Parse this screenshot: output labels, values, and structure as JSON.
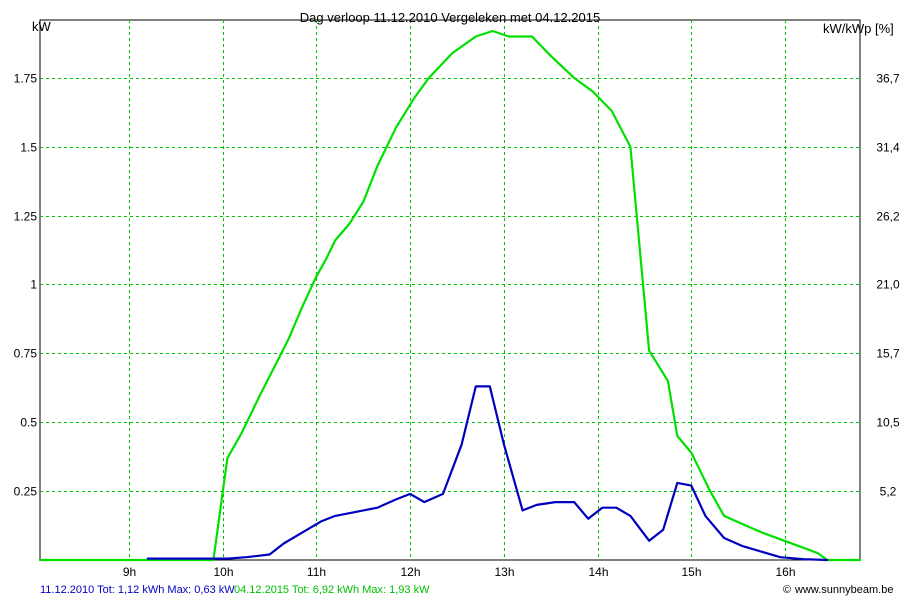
{
  "chart_data": {
    "type": "line",
    "title": "Dag  verloop 11.12.2010   Vergeleken met 04.12.2015",
    "ylabel_left": "kW",
    "ylabel_right": "kW/kWp [%]",
    "grid": true,
    "x_unit": "hour",
    "xlim": [
      8.05,
      16.8
    ],
    "ylim": [
      0,
      1.96
    ],
    "x_ticks": [
      {
        "value": 9,
        "label": "9h"
      },
      {
        "value": 10,
        "label": "10h"
      },
      {
        "value": 11,
        "label": "11h"
      },
      {
        "value": 12,
        "label": "12h"
      },
      {
        "value": 13,
        "label": "13h"
      },
      {
        "value": 14,
        "label": "14h"
      },
      {
        "value": 15,
        "label": "15h"
      },
      {
        "value": 16,
        "label": "16h"
      }
    ],
    "y_ticks_left": [
      {
        "value": 0.25,
        "label": "0.25"
      },
      {
        "value": 0.5,
        "label": "0.5"
      },
      {
        "value": 0.75,
        "label": "0.75"
      },
      {
        "value": 1,
        "label": "1"
      },
      {
        "value": 1.25,
        "label": "1.25"
      },
      {
        "value": 1.5,
        "label": "1.5"
      },
      {
        "value": 1.75,
        "label": "1.75"
      }
    ],
    "y_ticks_right": [
      {
        "value": 0.25,
        "label": "5,2"
      },
      {
        "value": 0.5,
        "label": "10,5"
      },
      {
        "value": 0.75,
        "label": "15,7"
      },
      {
        "value": 1,
        "label": "21,0"
      },
      {
        "value": 1.25,
        "label": "26,2"
      },
      {
        "value": 1.5,
        "label": "31,4"
      },
      {
        "value": 1.75,
        "label": "36,7"
      }
    ],
    "series": [
      {
        "name": "04.12.2015",
        "color": "#00e000",
        "x": [
          8.05,
          9.9,
          10.05,
          10.2,
          10.4,
          10.55,
          10.7,
          10.85,
          11.0,
          11.1,
          11.2,
          11.35,
          11.5,
          11.65,
          11.85,
          12.05,
          12.2,
          12.45,
          12.7,
          12.88,
          13.05,
          13.3,
          13.5,
          13.75,
          13.95,
          14.15,
          14.35,
          14.55,
          14.75,
          14.85,
          15.0,
          15.1,
          15.2,
          15.35,
          15.55,
          15.75,
          15.95,
          16.15,
          16.35,
          16.45,
          16.8
        ],
        "y": [
          0,
          0,
          0.37,
          0.46,
          0.6,
          0.7,
          0.8,
          0.92,
          1.03,
          1.09,
          1.16,
          1.22,
          1.3,
          1.43,
          1.57,
          1.68,
          1.75,
          1.84,
          1.9,
          1.92,
          1.9,
          1.9,
          1.83,
          1.75,
          1.7,
          1.63,
          1.5,
          0.76,
          0.65,
          0.45,
          0.39,
          0.32,
          0.25,
          0.16,
          0.13,
          0.1,
          0.075,
          0.05,
          0.025,
          0,
          0
        ]
      },
      {
        "name": "11.12.2010",
        "color": "#0000c0",
        "x": [
          9.2,
          9.9,
          10.05,
          10.25,
          10.5,
          10.65,
          10.85,
          11.05,
          11.2,
          11.35,
          11.5,
          11.65,
          11.85,
          12.0,
          12.15,
          12.35,
          12.55,
          12.7,
          12.85,
          13.0,
          13.2,
          13.35,
          13.55,
          13.75,
          13.9,
          14.05,
          14.2,
          14.35,
          14.55,
          14.7,
          14.85,
          15.0,
          15.15,
          15.35,
          15.55,
          15.75,
          15.95,
          16.2,
          16.45
        ],
        "y": [
          0.005,
          0.005,
          0.005,
          0.01,
          0.02,
          0.06,
          0.1,
          0.14,
          0.16,
          0.17,
          0.18,
          0.19,
          0.22,
          0.24,
          0.21,
          0.24,
          0.42,
          0.63,
          0.63,
          0.42,
          0.18,
          0.2,
          0.21,
          0.21,
          0.15,
          0.19,
          0.19,
          0.16,
          0.07,
          0.11,
          0.28,
          0.27,
          0.16,
          0.08,
          0.05,
          0.03,
          0.01,
          0.003,
          0
        ]
      }
    ],
    "footer": {
      "series_b_label": "11.12.2010 Tot: 1,12 kWh Max: 0,63 kW",
      "series_a_label": "04.12.2015 Tot: 6,92 kWh Max: 1,93 kW",
      "credit": "www.sunnybeam.be",
      "credit_symbol": "©"
    }
  }
}
